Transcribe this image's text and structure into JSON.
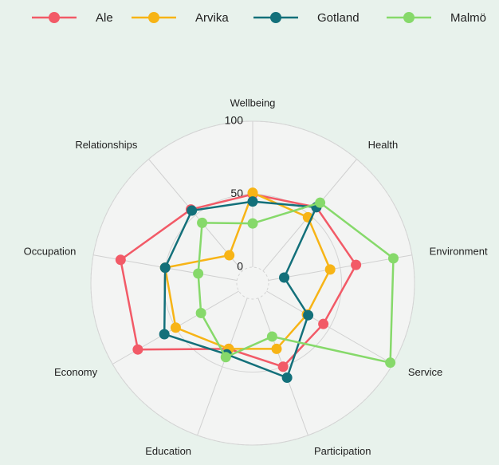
{
  "chart_data": {
    "type": "radar",
    "categories": [
      "Wellbeing",
      "Health",
      "Environment",
      "Service",
      "Participation",
      "Education",
      "Economy",
      "Occupation",
      "Relationships"
    ],
    "ylim": [
      0,
      100
    ],
    "yticks": [
      0,
      50,
      100
    ],
    "grid": true,
    "legend": "top",
    "series": [
      {
        "name": "Ale",
        "color": "#f25a67",
        "values": [
          50,
          57,
          61,
          45,
          50,
          37,
          80,
          81,
          55
        ]
      },
      {
        "name": "Arvika",
        "color": "#f7b416",
        "values": [
          51,
          48,
          43,
          32,
          37,
          37,
          50,
          50,
          14
        ]
      },
      {
        "name": "Gotland",
        "color": "#13707a",
        "values": [
          45,
          57,
          11,
          33,
          58,
          41,
          59,
          50,
          54
        ]
      },
      {
        "name": "Malmö",
        "color": "#86d96a",
        "values": [
          30,
          61,
          87,
          98,
          28,
          43,
          30,
          27,
          43
        ]
      }
    ]
  }
}
